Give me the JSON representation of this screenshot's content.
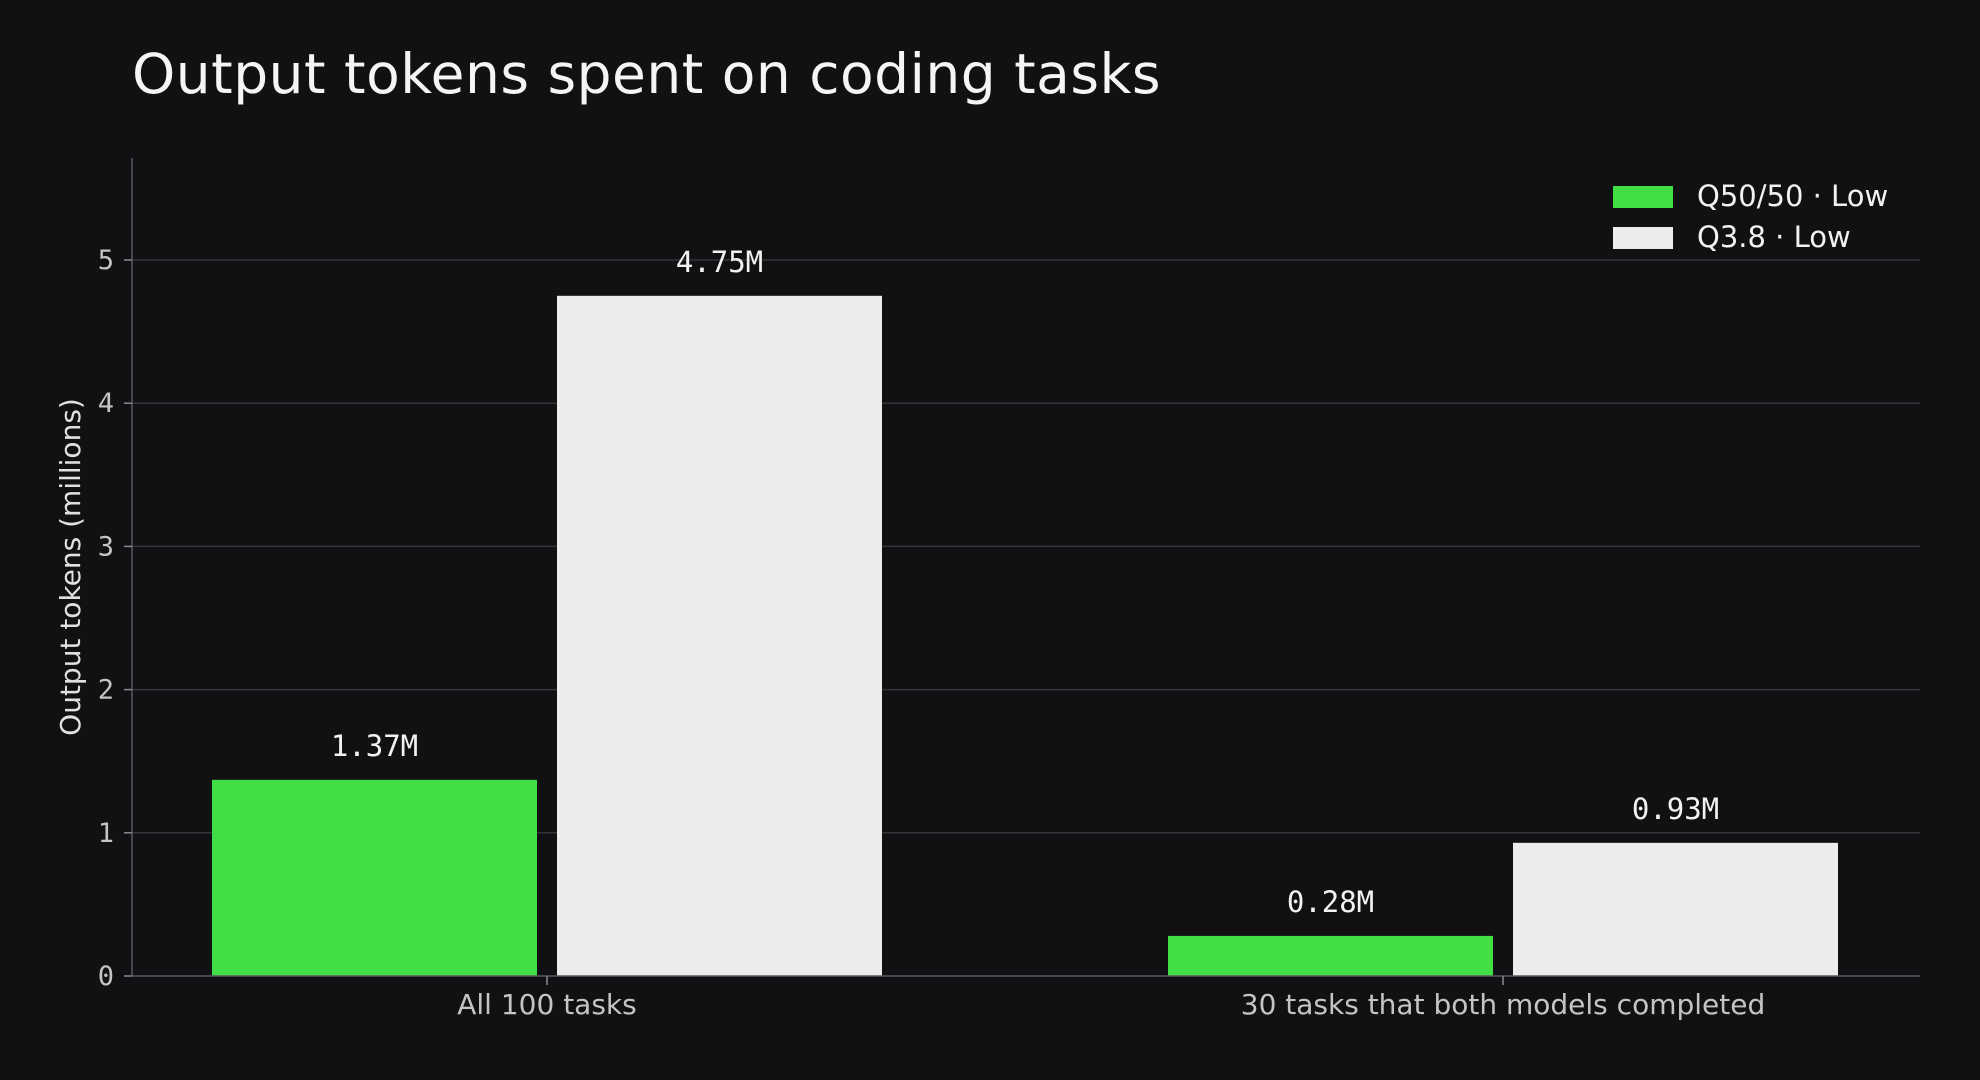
{
  "chart_data": {
    "type": "bar",
    "title": "Output tokens spent on coding tasks",
    "xlabel": "",
    "ylabel": "Output tokens (millions)",
    "ylim": [
      0,
      5.7
    ],
    "yticks": [
      "0",
      "1",
      "2",
      "3",
      "4",
      "5"
    ],
    "grid": true,
    "legend_position": "top-right",
    "categories": [
      "All 100 tasks",
      "30 tasks that both models completed"
    ],
    "series": [
      {
        "name": "Q50/50 · Low",
        "color": "#41de46",
        "values": [
          1.37,
          0.28
        ],
        "labels": [
          "1.37M",
          "0.28M"
        ]
      },
      {
        "name": "Q3.8 · Low",
        "color": "#ececec",
        "values": [
          4.75,
          0.93
        ],
        "labels": [
          "4.75M",
          "0.93M"
        ]
      }
    ]
  }
}
